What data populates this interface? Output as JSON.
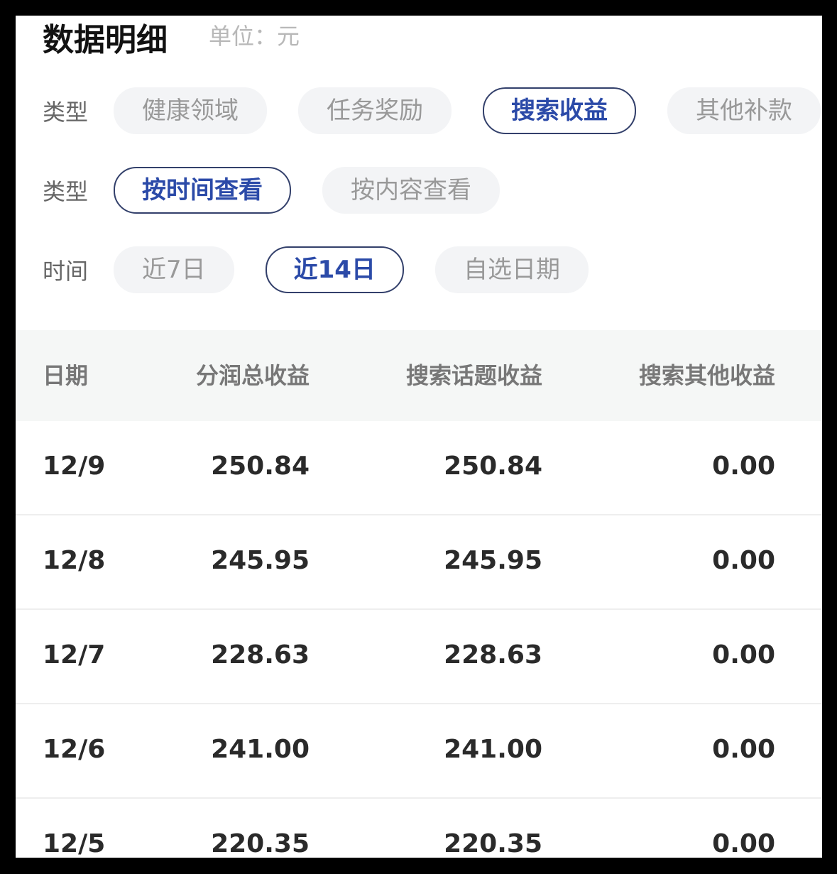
{
  "header": {
    "title": "数据明细",
    "unit": "单位：元"
  },
  "filters": [
    {
      "label": "类型",
      "options": [
        "健康领域",
        "任务奖励",
        "搜索收益",
        "其他补款"
      ],
      "selected": 2
    },
    {
      "label": "类型",
      "options": [
        "按时间查看",
        "按内容查看"
      ],
      "selected": 0
    },
    {
      "label": "时间",
      "options": [
        "近7日",
        "近14日",
        "自选日期"
      ],
      "selected": 1
    }
  ],
  "table": {
    "header": [
      "日期",
      "分润总收益",
      "搜索话题收益",
      "搜索其他收益"
    ],
    "rows": [
      [
        "12/9",
        "250.84",
        "250.84",
        "0.00"
      ],
      [
        "12/8",
        "245.95",
        "245.95",
        "0.00"
      ],
      [
        "12/7",
        "228.63",
        "228.63",
        "0.00"
      ],
      [
        "12/6",
        "241.00",
        "241.00",
        "0.00"
      ],
      [
        "12/5",
        "220.35",
        "220.35",
        "0.00"
      ]
    ]
  }
}
